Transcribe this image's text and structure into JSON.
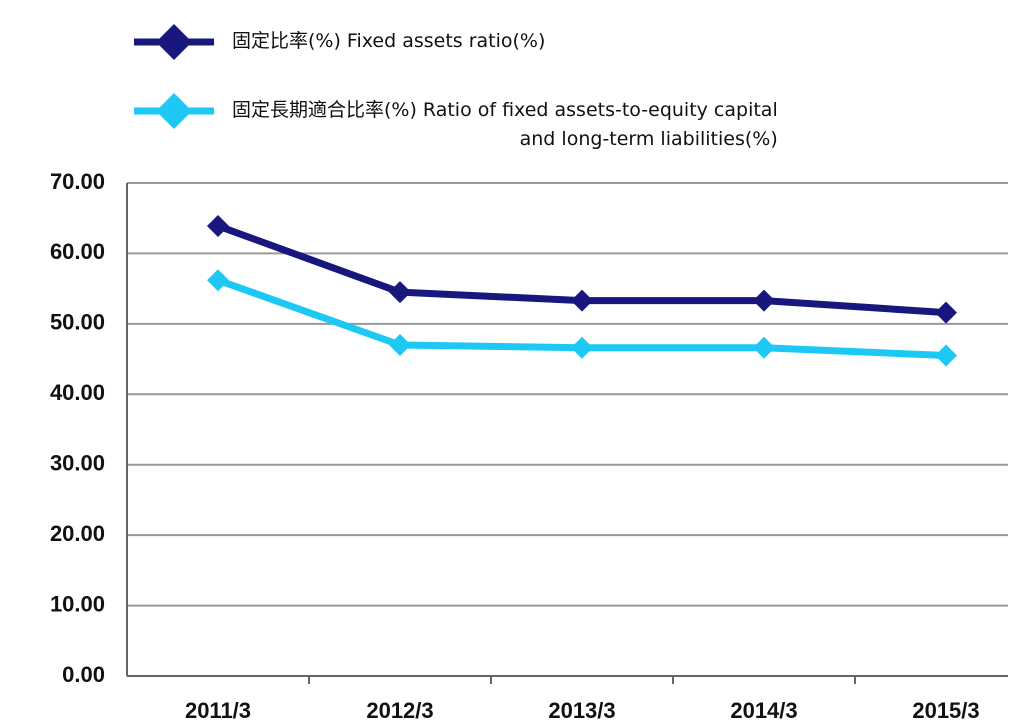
{
  "chart_data": {
    "type": "line",
    "categories": [
      "2011/3",
      "2012/3",
      "2013/3",
      "2014/3",
      "2015/3"
    ],
    "series": [
      {
        "name": "固定比率(%)  Fixed assets ratio(%)",
        "color": "#17177d",
        "values": [
          63.9,
          54.5,
          53.3,
          53.3,
          51.6
        ]
      },
      {
        "name": "固定長期適合比率(%)  Ratio of fixed assets-to-equity capital\nand long-term liabilities(%)",
        "color": "#1ec8f5",
        "values": [
          56.2,
          47.0,
          46.6,
          46.6,
          45.5
        ]
      }
    ],
    "ylim": [
      0,
      70
    ],
    "yticks": [
      {
        "value": 0,
        "label": "0.00"
      },
      {
        "value": 10,
        "label": "10.00"
      },
      {
        "value": 20,
        "label": "20.00"
      },
      {
        "value": 30,
        "label": "30.00"
      },
      {
        "value": 40,
        "label": "40.00"
      },
      {
        "value": 50,
        "label": "50.00"
      },
      {
        "value": 60,
        "label": "60.00"
      },
      {
        "value": 70,
        "label": "70.00"
      }
    ],
    "grid": true
  }
}
